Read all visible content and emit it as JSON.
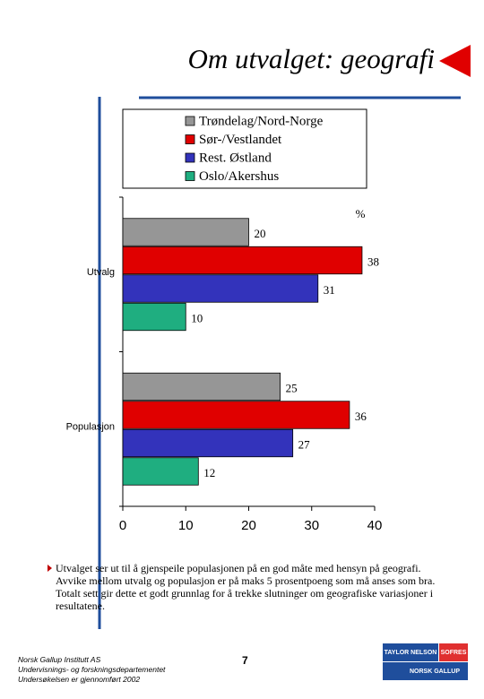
{
  "header": {
    "title": "Om utvalget: geografi"
  },
  "chart_data": {
    "type": "bar",
    "orientation": "horizontal",
    "unit_label": "%",
    "categories": [
      "Utvalg",
      "Populasjon"
    ],
    "series": [
      {
        "name": "Trøndelag/Nord-Norge",
        "color": "#969696",
        "values": [
          20,
          25
        ]
      },
      {
        "name": "Sør-/Vestlandet",
        "color": "#e00000",
        "values": [
          38,
          36
        ]
      },
      {
        "name": "Rest. Østland",
        "color": "#3333bb",
        "values": [
          31,
          27
        ]
      },
      {
        "name": "Oslo/Akershus",
        "color": "#1fae80",
        "values": [
          10,
          12
        ]
      }
    ],
    "xlim": [
      0,
      40
    ],
    "xticks": [
      0,
      10,
      20,
      30,
      40
    ],
    "grid": false
  },
  "bullet": "Utvalget ser ut til å gjenspeile populasjonen på en god måte med hensyn på geografi. Avvike mellom utvalg og populasjon er på maks 5 prosentpoeng som må anses som bra. Totalt sett gir dette et godt grunnlag for å trekke slutninger om geografiske variasjoner i resultatene.",
  "footer": {
    "lines": [
      "Norsk Gallup Institutt AS",
      "Undervisnings- og forskningsdepartementet",
      "Undersøkelsen er gjennomført 2002"
    ],
    "page": "7"
  },
  "logo": {
    "top_left": "TAYLOR NELSON",
    "top_right": "SOFRES",
    "bottom": "NORSK GALLUP"
  }
}
